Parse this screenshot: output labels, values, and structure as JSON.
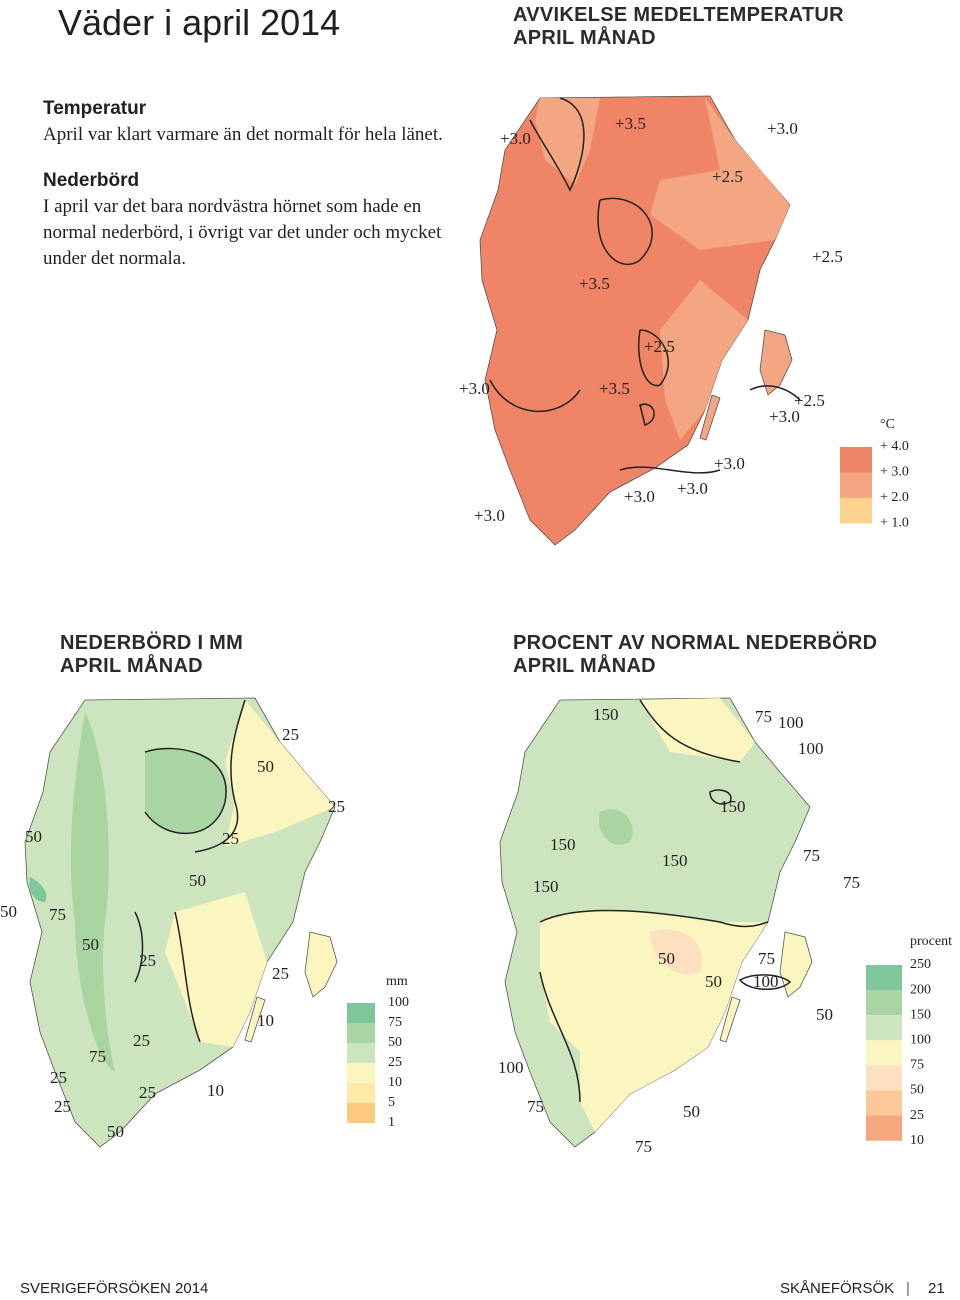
{
  "header": {
    "title": "Väder i april 2014"
  },
  "sections": [
    {
      "heading": "Temperatur",
      "text": "April var klart varmare än det normalt för hela länet."
    },
    {
      "heading": "Nederbörd",
      "text": "I april var det bara nordvästra hörnet som hade en normal nederbörd, i övrigt var det under och mycket under det normala."
    }
  ],
  "maps": [
    {
      "title": [
        "AVVIKELSE MEDELTEMPERATUR",
        "APRIL MÅNAD"
      ],
      "labels": [
        "+3.0",
        "+3.5",
        "+3.0",
        "+2.5",
        "+2.5",
        "+3.5",
        "+2.5",
        "+3.0",
        "+3.5",
        "+2.5",
        "+3.0",
        "+3.0",
        "+3.0",
        "+3.0",
        "+3.0"
      ],
      "legend": {
        "unit": "°C",
        "items": [
          "+ 4.0",
          "+ 3.0",
          "+ 2.0",
          "+ 1.0"
        ]
      }
    },
    {
      "title": [
        "NEDERBÖRD I MM",
        "APRIL MÅNAD"
      ],
      "labels": [
        "25",
        "50",
        "25",
        "50",
        "25",
        "50",
        "50",
        "75",
        "50",
        "25",
        "25",
        "10",
        "25",
        "75",
        "25",
        "10",
        "25",
        "25",
        "50"
      ],
      "legend": {
        "unit": "mm",
        "items": [
          "100",
          "75",
          "50",
          "25",
          "10",
          "5",
          "1"
        ]
      }
    },
    {
      "title": [
        "PROCENT AV NORMAL NEDERBÖRD",
        "APRIL MÅNAD"
      ],
      "labels": [
        "150",
        "75",
        "100",
        "100",
        "150",
        "150",
        "150",
        "75",
        "150",
        "75",
        "50",
        "75",
        "50",
        "100",
        "50",
        "100",
        "75",
        "50",
        "75"
      ],
      "legend": {
        "unit": "procent",
        "items": [
          "250",
          "200",
          "150",
          "100",
          "75",
          "50",
          "25",
          "10"
        ]
      }
    }
  ],
  "footer": {
    "left": "SVERIGEFÖRSÖKEN 2014",
    "right": "SKÅNEFÖRSÖK",
    "page": "21"
  }
}
